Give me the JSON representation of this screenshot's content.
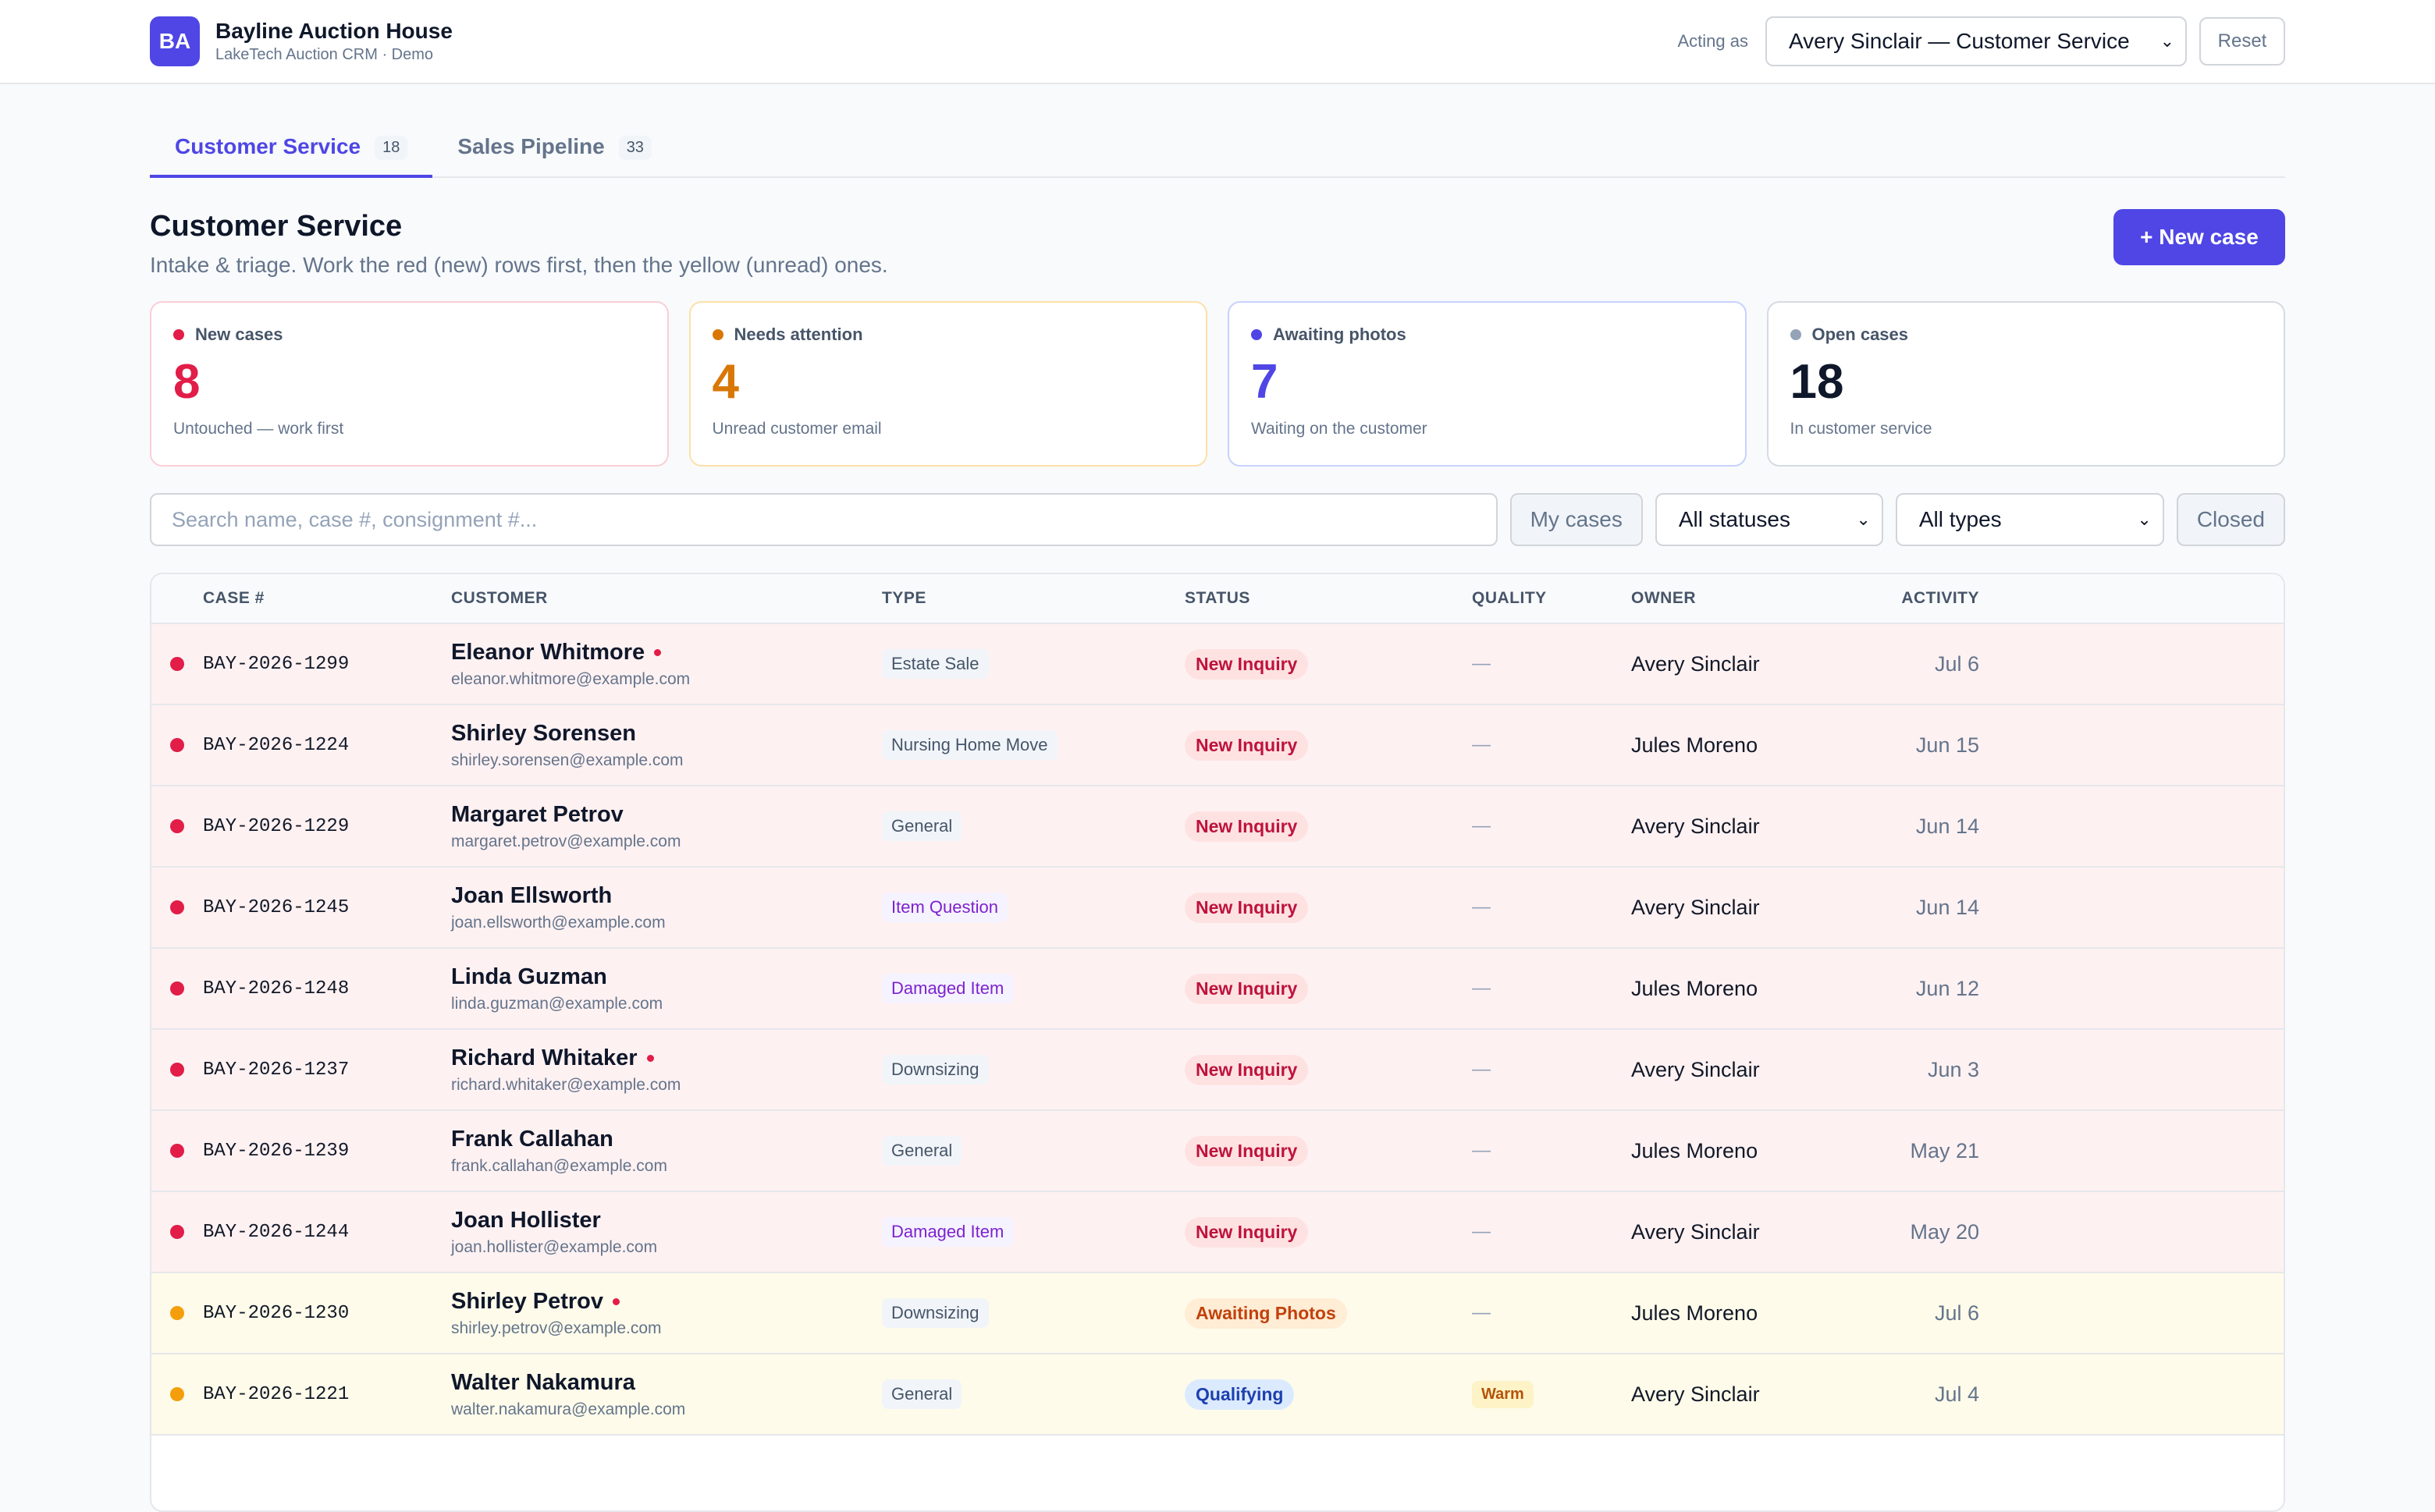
{
  "header": {
    "logo_text": "BA",
    "title": "Bayline Auction House",
    "subtitle": "LakeTech Auction CRM · Demo",
    "acting_label": "Acting as",
    "acting_value": "Avery Sinclair — Customer Service",
    "reset_label": "Reset"
  },
  "tabs": [
    {
      "label": "Customer Service",
      "count": "18",
      "active": true
    },
    {
      "label": "Sales Pipeline",
      "count": "33",
      "active": false
    }
  ],
  "page": {
    "title": "Customer Service",
    "subtitle": "Intake & triage. Work the red (new) rows first, then the yellow (unread) ones.",
    "new_case_label": "+ New case"
  },
  "stats": [
    {
      "label": "New cases",
      "value": "8",
      "note": "Untouched — work first",
      "color": "#e11d48",
      "border": "#fbcfd6"
    },
    {
      "label": "Needs attention",
      "value": "4",
      "note": "Unread customer email",
      "color": "#d97706",
      "border": "#fde0a8"
    },
    {
      "label": "Awaiting photos",
      "value": "7",
      "note": "Waiting on the customer",
      "color": "#4f46e5",
      "border": "#c7d2fe"
    },
    {
      "label": "Open cases",
      "value": "18",
      "note": "In customer service",
      "color": "#0f172a",
      "dot": "#94a3b8",
      "border": "#d5dbe3"
    }
  ],
  "filters": {
    "search_placeholder": "Search name, case #, consignment #...",
    "my_cases_label": "My cases",
    "status_value": "All statuses",
    "type_value": "All types",
    "closed_label": "Closed"
  },
  "table": {
    "columns": [
      "CASE #",
      "CUSTOMER",
      "TYPE",
      "STATUS",
      "QUALITY",
      "OWNER",
      "ACTIVITY"
    ],
    "rows": [
      {
        "case": "BAY-2026-1299",
        "name": "Eleanor Whitmore",
        "email": "eleanor.whitmore@example.com",
        "unread": true,
        "type": "Estate Sale",
        "type_style": "gray",
        "status": "New Inquiry",
        "status_style": "new",
        "quality": "—",
        "owner": "Avery Sinclair",
        "activity": "Jul 6",
        "tone": "red"
      },
      {
        "case": "BAY-2026-1224",
        "name": "Shirley Sorensen",
        "email": "shirley.sorensen@example.com",
        "unread": false,
        "type": "Nursing Home Move",
        "type_style": "gray",
        "status": "New Inquiry",
        "status_style": "new",
        "quality": "—",
        "owner": "Jules Moreno",
        "activity": "Jun 15",
        "tone": "red"
      },
      {
        "case": "BAY-2026-1229",
        "name": "Margaret Petrov",
        "email": "margaret.petrov@example.com",
        "unread": false,
        "type": "General",
        "type_style": "gray",
        "status": "New Inquiry",
        "status_style": "new",
        "quality": "—",
        "owner": "Avery Sinclair",
        "activity": "Jun 14",
        "tone": "red"
      },
      {
        "case": "BAY-2026-1245",
        "name": "Joan Ellsworth",
        "email": "joan.ellsworth@example.com",
        "unread": false,
        "type": "Item Question",
        "type_style": "purple",
        "status": "New Inquiry",
        "status_style": "new",
        "quality": "—",
        "owner": "Avery Sinclair",
        "activity": "Jun 14",
        "tone": "red"
      },
      {
        "case": "BAY-2026-1248",
        "name": "Linda Guzman",
        "email": "linda.guzman@example.com",
        "unread": false,
        "type": "Damaged Item",
        "type_style": "purple",
        "status": "New Inquiry",
        "status_style": "new",
        "quality": "—",
        "owner": "Jules Moreno",
        "activity": "Jun 12",
        "tone": "red"
      },
      {
        "case": "BAY-2026-1237",
        "name": "Richard Whitaker",
        "email": "richard.whitaker@example.com",
        "unread": true,
        "type": "Downsizing",
        "type_style": "gray",
        "status": "New Inquiry",
        "status_style": "new",
        "quality": "—",
        "owner": "Avery Sinclair",
        "activity": "Jun 3",
        "tone": "red"
      },
      {
        "case": "BAY-2026-1239",
        "name": "Frank Callahan",
        "email": "frank.callahan@example.com",
        "unread": false,
        "type": "General",
        "type_style": "gray",
        "status": "New Inquiry",
        "status_style": "new",
        "quality": "—",
        "owner": "Jules Moreno",
        "activity": "May 21",
        "tone": "red"
      },
      {
        "case": "BAY-2026-1244",
        "name": "Joan Hollister",
        "email": "joan.hollister@example.com",
        "unread": false,
        "type": "Damaged Item",
        "type_style": "purple",
        "status": "New Inquiry",
        "status_style": "new",
        "quality": "—",
        "owner": "Avery Sinclair",
        "activity": "May 20",
        "tone": "red"
      },
      {
        "case": "BAY-2026-1230",
        "name": "Shirley Petrov",
        "email": "shirley.petrov@example.com",
        "unread": true,
        "type": "Downsizing",
        "type_style": "gray",
        "status": "Awaiting Photos",
        "status_style": "awaiting",
        "quality": "—",
        "owner": "Jules Moreno",
        "activity": "Jul 6",
        "tone": "yellow"
      },
      {
        "case": "BAY-2026-1221",
        "name": "Walter Nakamura",
        "email": "walter.nakamura@example.com",
        "unread": false,
        "type": "General",
        "type_style": "gray",
        "status": "Qualifying",
        "status_style": "qualifying",
        "quality": "Warm",
        "owner": "Avery Sinclair",
        "activity": "Jul 4",
        "tone": "yellow"
      }
    ]
  },
  "colors": {
    "accent": "#4f46e5",
    "new_dot": "#e11d48",
    "unread_dot": "#f59e0b"
  }
}
